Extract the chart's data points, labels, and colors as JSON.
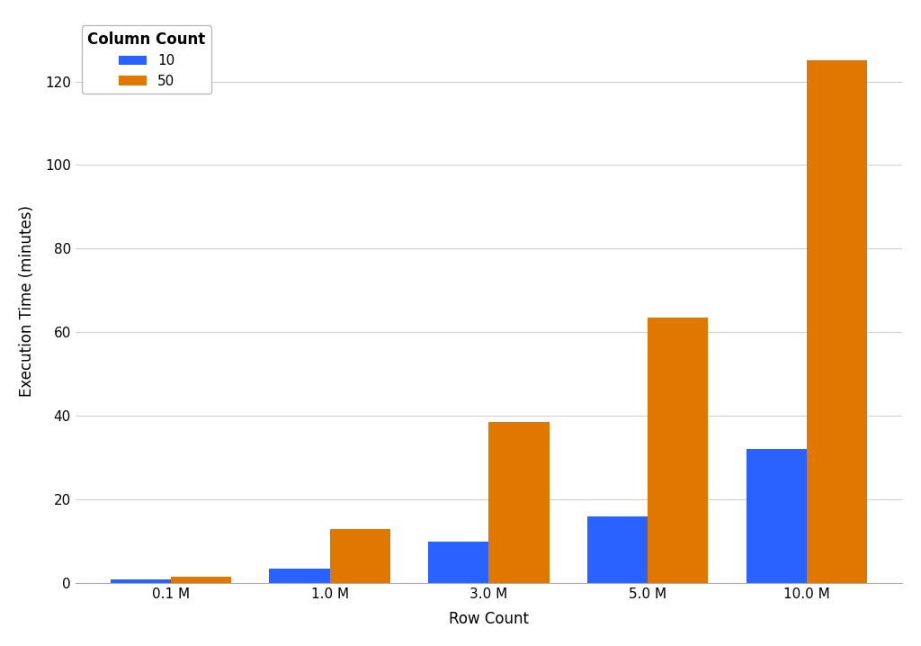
{
  "xlabel": "Row Count",
  "ylabel": "Execution Time (minutes)",
  "categories": [
    "0.1 M",
    "1.0 M",
    "3.0 M",
    "5.0 M",
    "10.0 M"
  ],
  "series": [
    {
      "label": "10",
      "color": "#2962FF",
      "values": [
        0.8,
        3.5,
        10.0,
        16.0,
        32.0
      ]
    },
    {
      "label": "50",
      "color": "#E07800",
      "values": [
        1.5,
        13.0,
        38.5,
        63.5,
        125.0
      ]
    }
  ],
  "legend_title": "Column Count",
  "ylim": [
    0,
    135
  ],
  "yticks": [
    0,
    20,
    40,
    60,
    80,
    100,
    120
  ],
  "plot_bg_color": "#FFFFFF",
  "fig_bg_color": "#FFFFFF",
  "grid_color": "#D0D0D0",
  "bar_width": 0.38,
  "axis_label_fontsize": 12,
  "tick_fontsize": 11,
  "legend_fontsize": 11
}
